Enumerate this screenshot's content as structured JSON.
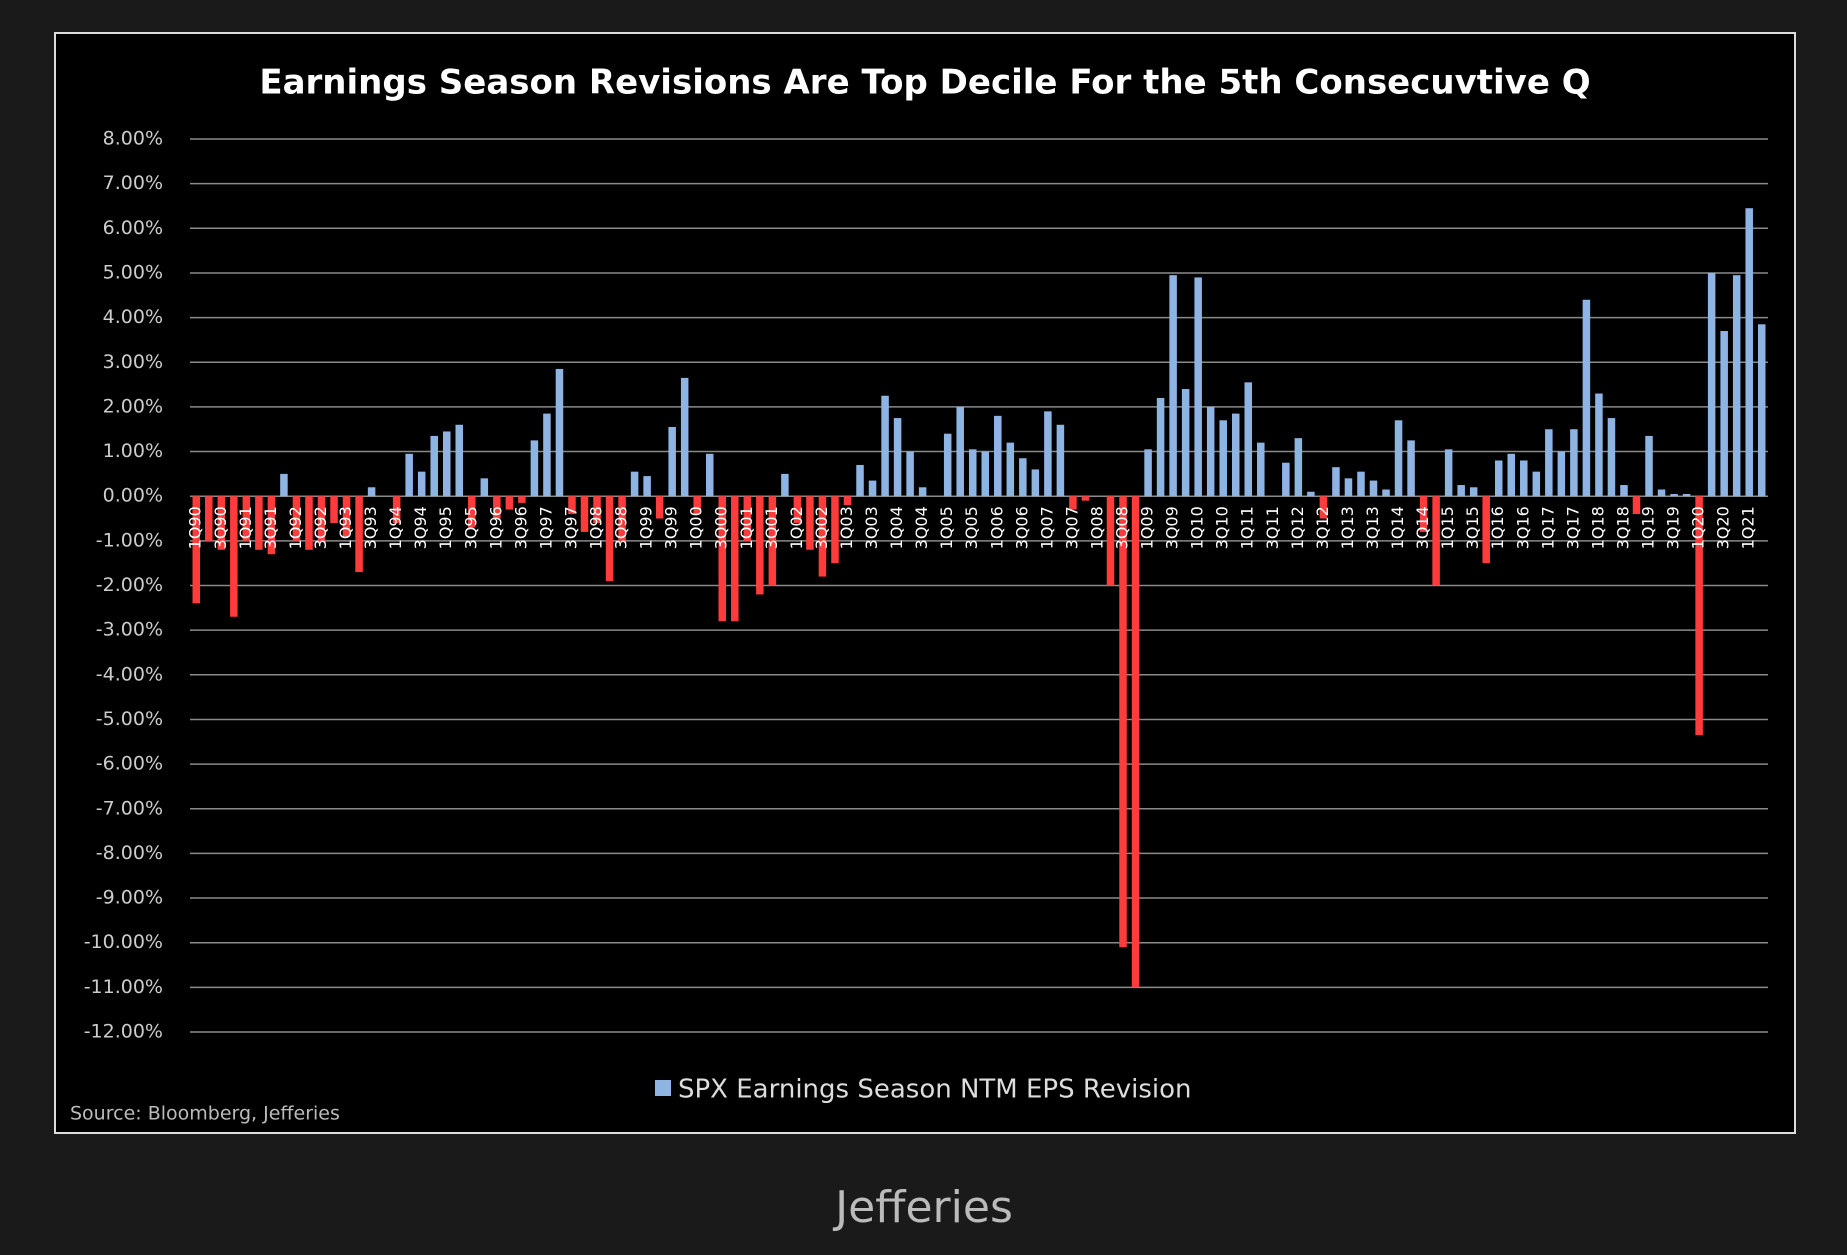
{
  "chart_data": {
    "type": "bar",
    "title": "Earnings Season Revisions Are Top Decile For the 5th Consecuvtive Q",
    "source": "Source: Bloomberg, Jefferies",
    "categories": [
      "1Q90",
      null,
      "3Q90",
      null,
      "1Q91",
      null,
      "3Q91",
      null,
      "1Q92",
      null,
      "3Q92",
      null,
      "1Q93",
      null,
      "3Q93",
      null,
      "1Q94",
      null,
      "3Q94",
      null,
      "1Q95",
      null,
      "3Q95",
      null,
      "1Q96",
      null,
      "3Q96",
      null,
      "1Q97",
      null,
      "3Q97",
      null,
      "1Q98",
      null,
      "3Q98",
      null,
      "1Q99",
      null,
      "3Q99",
      null,
      "1Q00",
      null,
      "3Q00",
      null,
      "1Q01",
      null,
      "3Q01",
      null,
      "1Q02",
      null,
      "3Q02",
      null,
      "1Q03",
      null,
      "3Q03",
      null,
      "1Q04",
      null,
      "3Q04",
      null,
      "1Q05",
      null,
      "3Q05",
      null,
      "1Q06",
      null,
      "3Q06",
      null,
      "1Q07",
      null,
      "3Q07",
      null,
      "1Q08",
      null,
      "3Q08",
      null,
      "1Q09",
      null,
      "3Q09",
      null,
      "1Q10",
      null,
      "3Q10",
      null,
      "1Q11",
      null,
      "3Q11",
      null,
      "1Q12",
      null,
      "3Q12",
      null,
      "1Q13",
      null,
      "3Q13",
      null,
      "1Q14",
      null,
      "3Q14",
      null,
      "1Q15",
      null,
      "3Q15",
      null,
      "1Q16",
      null,
      "3Q16",
      null,
      "1Q17",
      null,
      "3Q17",
      null,
      "1Q18",
      null,
      "3Q18",
      null,
      "1Q19",
      null,
      "3Q19",
      null,
      "1Q20",
      null,
      "3Q20",
      null,
      "1Q21",
      null
    ],
    "series": [
      {
        "name": "SPX Earnings Season NTM EPS Revision",
        "color": "#8db4e2",
        "negative_color": "#ff3b3b",
        "values": [
          -2.4,
          -1.0,
          -1.2,
          -2.7,
          -1.0,
          -1.2,
          -1.3,
          0.5,
          -1.0,
          -1.2,
          -1.0,
          -0.6,
          -0.9,
          -1.7,
          0.2,
          0.0,
          -0.6,
          0.95,
          0.55,
          1.35,
          1.45,
          1.6,
          -0.7,
          0.4,
          -0.5,
          -0.3,
          -0.15,
          1.25,
          1.85,
          2.85,
          -0.4,
          -0.8,
          -0.6,
          -1.9,
          -1.0,
          0.55,
          0.45,
          -0.5,
          1.55,
          2.65,
          -0.4,
          0.95,
          -2.8,
          -2.8,
          -1.0,
          -2.2,
          -2.0,
          0.5,
          -0.6,
          -1.2,
          -1.8,
          -1.5,
          -0.2,
          0.7,
          0.35,
          2.25,
          1.75,
          1.0,
          0.2,
          0.0,
          1.4,
          2.0,
          1.05,
          1.0,
          1.8,
          1.2,
          0.85,
          0.6,
          1.9,
          1.6,
          -0.3,
          -0.1,
          0.0,
          -2.0,
          -10.1,
          -11.0,
          1.05,
          2.2,
          4.95,
          2.4,
          4.9,
          2.0,
          1.7,
          1.85,
          2.55,
          1.2,
          0.0,
          0.75,
          1.3,
          0.1,
          -0.5,
          0.65,
          0.4,
          0.55,
          0.35,
          0.15,
          1.7,
          1.25,
          -0.8,
          -2.0,
          1.05,
          0.25,
          0.2,
          -1.5,
          0.8,
          0.95,
          0.8,
          0.55,
          1.5,
          1.0,
          1.5,
          4.4,
          2.3,
          1.75,
          0.25,
          -0.4,
          1.35,
          0.15,
          0.05,
          0.05,
          -5.35,
          5.0,
          3.7,
          4.95,
          6.45,
          3.85
        ]
      }
    ],
    "ylim": [
      -12,
      8
    ],
    "yticks": [
      {
        "value": 8,
        "label": "8.00%"
      },
      {
        "value": 7,
        "label": "7.00%"
      },
      {
        "value": 6,
        "label": "6.00%"
      },
      {
        "value": 5,
        "label": "5.00%"
      },
      {
        "value": 4,
        "label": "4.00%"
      },
      {
        "value": 3,
        "label": "3.00%"
      },
      {
        "value": 2,
        "label": "2.00%"
      },
      {
        "value": 1,
        "label": "1.00%"
      },
      {
        "value": 0,
        "label": "0.00%"
      },
      {
        "value": -1,
        "label": "-1.00%"
      },
      {
        "value": -2,
        "label": "-2.00%"
      },
      {
        "value": -3,
        "label": "-3.00%"
      },
      {
        "value": -4,
        "label": "-4.00%"
      },
      {
        "value": -5,
        "label": "-5.00%"
      },
      {
        "value": -6,
        "label": "-6.00%"
      },
      {
        "value": -7,
        "label": "-7.00%"
      },
      {
        "value": -8,
        "label": "-8.00%"
      },
      {
        "value": -9,
        "label": "-9.00%"
      },
      {
        "value": -10,
        "label": "-10.00%"
      },
      {
        "value": -11,
        "label": "-11.00%"
      },
      {
        "value": -12,
        "label": "-12.00%"
      }
    ],
    "grid": true
  },
  "caption": "Jefferies"
}
